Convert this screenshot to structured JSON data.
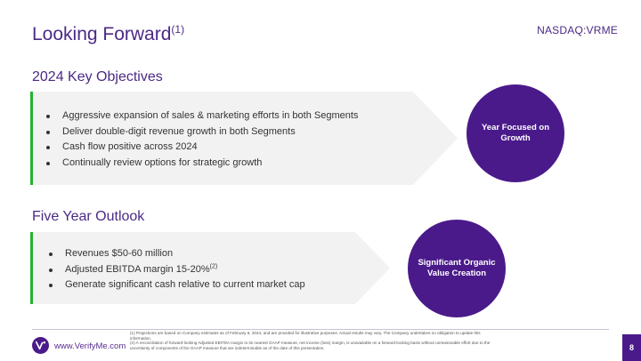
{
  "header": {
    "title": "Looking Forward",
    "title_note": "(1)",
    "ticker": "NASDAQ:VRME"
  },
  "objectives": {
    "heading": "2024 Key Objectives",
    "items": [
      "Aggressive expansion of sales & marketing efforts in both Segments",
      "Deliver double-digit revenue growth in both Segments",
      "Cash flow positive across 2024",
      "Continually review options for strategic growth"
    ],
    "circle_label": "Year Focused on Growth"
  },
  "outlook": {
    "heading": "Five Year Outlook",
    "item_revenues": "Revenues $50-60 million",
    "item_ebitda": "Adjusted EBITDA margin 15-20%",
    "item_ebitda_note": "(2)",
    "item_cash": "Generate significant cash relative to current market cap",
    "circle_label": "Significant Organic Value Creation"
  },
  "footer": {
    "url": "www.VerifyMe.com",
    "footnote_1": "(1) Projections are based on Company estimates as of February 6, 2024, and are provided for illustrative purposes. Actual results may vary. The Company undertakes no obligation to update this information.",
    "footnote_2": "(2) A reconciliation of forward-looking Adjusted EBITDA margin to its nearest GAAP measure, net income (loss) margin, is unavailable on a forward-looking basis without unreasonable effort due to the uncertainty of components of the GAAP measure that are indeterminable as of the date of this presentation.",
    "page_number": "8"
  },
  "colors": {
    "brand_purple": "#4a1a8a",
    "accent_green": "#22b530",
    "panel_gray": "#f2f2f2"
  }
}
